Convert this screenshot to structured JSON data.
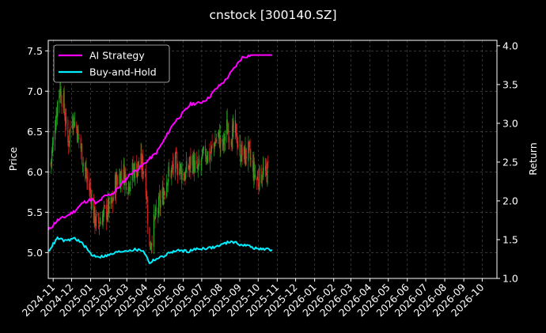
{
  "chart_data": {
    "type": "line",
    "title": "cnstock [300140.SZ]",
    "xlabel": "",
    "ylabel_left": "Price",
    "ylabel_right": "Return",
    "x_ticks": [
      "2024-11",
      "2024-12",
      "2025-01",
      "2025-02",
      "2025-03",
      "2025-04",
      "2025-05",
      "2025-06",
      "2025-07",
      "2025-08",
      "2025-09",
      "2025-10",
      "2025-11",
      "2025-12",
      "2026-01",
      "2026-02",
      "2026-03",
      "2026-04",
      "2026-05",
      "2026-06",
      "2026-07",
      "2026-08",
      "2026-09",
      "2026-10"
    ],
    "x_range": [
      "2024-10-24",
      "2026-10-25"
    ],
    "y_left_range": [
      4.68,
      7.63
    ],
    "y_left_ticks": [
      5.0,
      5.5,
      6.0,
      6.5,
      7.0,
      7.5
    ],
    "y_right_range": [
      1.0,
      4.07
    ],
    "y_right_ticks": [
      1.0,
      1.5,
      2.0,
      2.5,
      3.0,
      3.5,
      4.0
    ],
    "grid": true,
    "legend_position": "top-left",
    "colors": {
      "background": "#000000",
      "axes": "#ffffff",
      "grid": "#555555",
      "up_candle": "#22aa22",
      "down_candle": "#dd2222",
      "ai_strategy": "#ff00ff",
      "buy_and_hold": "#00eeff"
    },
    "candles": {
      "name": "price",
      "weekly_close": [
        [
          "2024-10-28",
          6.1
        ],
        [
          "2024-11-04",
          6.6
        ],
        [
          "2024-11-11",
          7.05
        ],
        [
          "2024-11-18",
          6.85
        ],
        [
          "2024-11-25",
          6.35
        ],
        [
          "2024-12-02",
          6.7
        ],
        [
          "2024-12-09",
          6.55
        ],
        [
          "2024-12-16",
          6.3
        ],
        [
          "2024-12-23",
          6.0
        ],
        [
          "2025-01-02",
          5.7
        ],
        [
          "2025-01-06",
          5.45
        ],
        [
          "2025-01-13",
          5.35
        ],
        [
          "2025-01-20",
          5.45
        ],
        [
          "2025-02-05",
          5.6
        ],
        [
          "2025-02-10",
          5.85
        ],
        [
          "2025-02-17",
          5.95
        ],
        [
          "2025-02-24",
          6.0
        ],
        [
          "2025-03-03",
          5.85
        ],
        [
          "2025-03-10",
          6.0
        ],
        [
          "2025-03-17",
          6.05
        ],
        [
          "2025-03-24",
          6.1
        ],
        [
          "2025-03-31",
          6.0
        ],
        [
          "2025-04-07",
          5.05
        ],
        [
          "2025-04-14",
          5.35
        ],
        [
          "2025-04-21",
          5.55
        ],
        [
          "2025-04-28",
          5.7
        ],
        [
          "2025-05-06",
          5.95
        ],
        [
          "2025-05-12",
          6.0
        ],
        [
          "2025-05-19",
          6.1
        ],
        [
          "2025-05-26",
          6.05
        ],
        [
          "2025-06-03",
          5.95
        ],
        [
          "2025-06-09",
          6.05
        ],
        [
          "2025-06-16",
          6.15
        ],
        [
          "2025-06-23",
          6.0
        ],
        [
          "2025-06-30",
          6.1
        ],
        [
          "2025-07-07",
          6.25
        ],
        [
          "2025-07-14",
          6.2
        ],
        [
          "2025-07-21",
          6.35
        ],
        [
          "2025-07-28",
          6.45
        ],
        [
          "2025-08-04",
          6.3
        ],
        [
          "2025-08-11",
          6.55
        ],
        [
          "2025-08-18",
          6.45
        ],
        [
          "2025-08-25",
          6.5
        ],
        [
          "2025-09-01",
          6.25
        ],
        [
          "2025-09-08",
          6.2
        ],
        [
          "2025-09-15",
          6.25
        ],
        [
          "2025-09-22",
          6.05
        ],
        [
          "2025-09-29",
          5.9
        ],
        [
          "2025-10-09",
          6.0
        ],
        [
          "2025-10-13",
          5.95
        ],
        [
          "2025-10-20",
          6.1
        ]
      ]
    },
    "series": [
      {
        "name": "AI Strategy",
        "axis": "right",
        "points": [
          [
            "2024-10-24",
            1.62
          ],
          [
            "2024-11-08",
            1.75
          ],
          [
            "2024-11-22",
            1.8
          ],
          [
            "2024-12-06",
            1.87
          ],
          [
            "2024-12-20",
            1.98
          ],
          [
            "2025-01-03",
            2.02
          ],
          [
            "2025-01-10",
            1.96
          ],
          [
            "2025-01-24",
            2.06
          ],
          [
            "2025-02-07",
            2.1
          ],
          [
            "2025-02-21",
            2.22
          ],
          [
            "2025-03-07",
            2.35
          ],
          [
            "2025-03-21",
            2.42
          ],
          [
            "2025-04-04",
            2.52
          ],
          [
            "2025-04-18",
            2.62
          ],
          [
            "2025-05-02",
            2.8
          ],
          [
            "2025-05-16",
            3.0
          ],
          [
            "2025-05-30",
            3.12
          ],
          [
            "2025-06-13",
            3.25
          ],
          [
            "2025-06-27",
            3.26
          ],
          [
            "2025-07-11",
            3.32
          ],
          [
            "2025-07-25",
            3.45
          ],
          [
            "2025-08-08",
            3.55
          ],
          [
            "2025-08-22",
            3.7
          ],
          [
            "2025-09-05",
            3.85
          ],
          [
            "2025-09-19",
            3.88
          ],
          [
            "2025-10-03",
            3.88
          ],
          [
            "2025-10-17",
            3.88
          ],
          [
            "2025-10-24",
            3.88
          ]
        ]
      },
      {
        "name": "Buy-and-Hold",
        "axis": "right",
        "points": [
          [
            "2024-10-24",
            1.35
          ],
          [
            "2024-11-08",
            1.52
          ],
          [
            "2024-11-22",
            1.48
          ],
          [
            "2024-12-06",
            1.52
          ],
          [
            "2024-12-20",
            1.44
          ],
          [
            "2025-01-03",
            1.3
          ],
          [
            "2025-01-17",
            1.28
          ],
          [
            "2025-01-31",
            1.3
          ],
          [
            "2025-02-14",
            1.34
          ],
          [
            "2025-02-28",
            1.36
          ],
          [
            "2025-03-14",
            1.37
          ],
          [
            "2025-03-28",
            1.36
          ],
          [
            "2025-04-07",
            1.2
          ],
          [
            "2025-04-14",
            1.24
          ],
          [
            "2025-04-28",
            1.28
          ],
          [
            "2025-05-12",
            1.34
          ],
          [
            "2025-05-26",
            1.36
          ],
          [
            "2025-06-09",
            1.35
          ],
          [
            "2025-06-23",
            1.38
          ],
          [
            "2025-07-07",
            1.39
          ],
          [
            "2025-07-21",
            1.4
          ],
          [
            "2025-08-04",
            1.44
          ],
          [
            "2025-08-18",
            1.48
          ],
          [
            "2025-09-01",
            1.44
          ],
          [
            "2025-09-15",
            1.42
          ],
          [
            "2025-09-29",
            1.38
          ],
          [
            "2025-10-13",
            1.38
          ],
          [
            "2025-10-24",
            1.36
          ]
        ]
      }
    ]
  }
}
